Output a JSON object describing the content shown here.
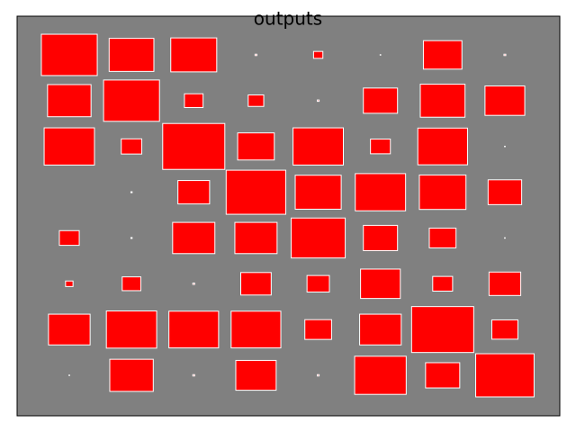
{
  "chart_data": {
    "type": "hinton",
    "title": "outputs",
    "color": "#ff0000",
    "background": "#808080",
    "edgecolor": "#ffffff",
    "values": [
      [
        0.9,
        0.72,
        0.74,
        0.03,
        0.15,
        0.01,
        0.62,
        0.03
      ],
      [
        0.7,
        0.9,
        0.3,
        0.25,
        0.03,
        0.55,
        0.72,
        0.64
      ],
      [
        0.81,
        0.33,
        1.0,
        0.59,
        0.81,
        0.32,
        0.8,
        0.01
      ],
      [
        0.0,
        0.02,
        0.51,
        0.96,
        0.74,
        0.81,
        0.75,
        0.54
      ],
      [
        0.32,
        0.02,
        0.68,
        0.68,
        0.87,
        0.55,
        0.43,
        0.01
      ],
      [
        0.12,
        0.3,
        0.03,
        0.49,
        0.36,
        0.64,
        0.32,
        0.51
      ],
      [
        0.67,
        0.81,
        0.8,
        0.8,
        0.43,
        0.67,
        1.0,
        0.42
      ],
      [
        0.01,
        0.7,
        0.03,
        0.65,
        0.03,
        0.83,
        0.55,
        0.94
      ]
    ]
  }
}
